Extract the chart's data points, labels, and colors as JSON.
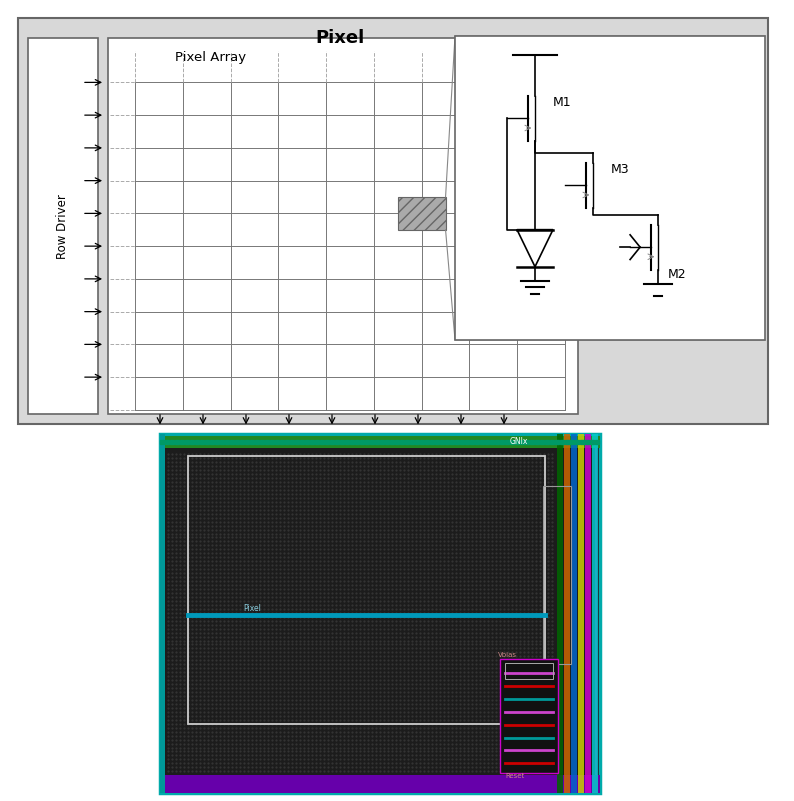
{
  "bg_color": "#ffffff",
  "pixel_label": "Pixel",
  "pixel_array_label": "Pixel Array",
  "row_driver_label": "Row Driver",
  "outer_fill": "#d8d8d8",
  "outer_edge": "#666666",
  "white": "#ffffff",
  "grid_solid": "#777777",
  "grid_dashed": "#aaaaaa",
  "hatch_fill": "#aaaaaa",
  "arrow_color": "#111111",
  "circuit_edge": "#666666",
  "line_color": "#333333",
  "layout_bg": "#1c1c1c",
  "layout_dot": "#2e2e2e",
  "layout_teal": "#00aaaa",
  "layout_magenta": "#cc00cc",
  "layout_green": "#00aa00",
  "layout_yellow": "#ccaa00",
  "layout_blue_stripe": "#0000cc",
  "layout_inner_white": "#cccccc",
  "layout_signal": "#0099bb",
  "layout_signal_text": "#88ccdd",
  "layout_purple": "#6600aa",
  "layout_comp_bg": "#111111",
  "layout_comp_red": "#cc0000",
  "layout_comp_magenta": "#cc44cc",
  "layout_comp_teal": "#009999",
  "layout_gnix_text": "#ffffff",
  "layout_reset_text": "#cc8888",
  "layout_vbias_text": "#cc8888",
  "layout_pixel_text": "#88ccdd"
}
